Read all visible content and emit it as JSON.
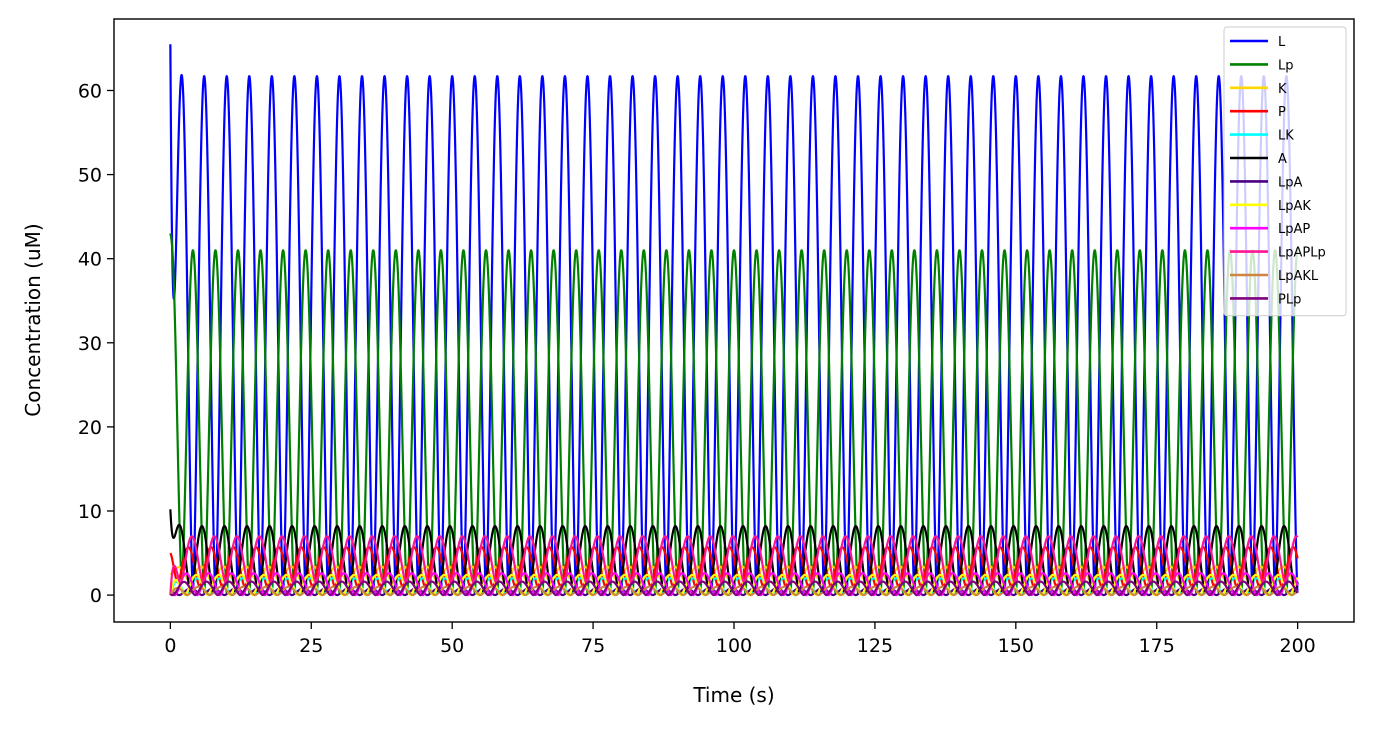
{
  "chart_data": {
    "type": "line",
    "title": "",
    "xlabel": "Time (s)",
    "ylabel": "Concentration (uM)",
    "xlim": [
      -10,
      210
    ],
    "ylim": [
      -3.2,
      68.5
    ],
    "xticks": [
      0,
      25,
      50,
      75,
      100,
      125,
      150,
      175,
      200
    ],
    "yticks": [
      0,
      10,
      20,
      30,
      40,
      50,
      60
    ],
    "grid": false,
    "legend_position": "top-right",
    "period_s": 4.0,
    "series": [
      {
        "name": "L",
        "color": "#0000ff",
        "min": 0.3,
        "max": 61.7,
        "initial": 65.5,
        "phase": 0.0
      },
      {
        "name": "Lp",
        "color": "#008000",
        "min": 0.3,
        "max": 41.0,
        "initial": 43.0,
        "phase": 0.5
      },
      {
        "name": "K",
        "color": "#ffd700",
        "min": 1.6,
        "max": 3.4,
        "initial": 2.6,
        "phase": 0.15
      },
      {
        "name": "P",
        "color": "#ff0000",
        "min": 1.0,
        "max": 5.7,
        "initial": 5.0,
        "phase": 0.7
      },
      {
        "name": "LK",
        "color": "#00ffff",
        "min": 0.0,
        "max": 2.0,
        "initial": 0.0,
        "phase": 0.3
      },
      {
        "name": "A",
        "color": "#000000",
        "min": 0.3,
        "max": 8.2,
        "initial": 10.2,
        "phase": 0.1
      },
      {
        "name": "LpA",
        "color": "#4b0082",
        "min": 0.0,
        "max": 0.8,
        "initial": 0.0,
        "phase": 0.6
      },
      {
        "name": "LpAK",
        "color": "#ffff00",
        "min": 0.0,
        "max": 2.4,
        "initial": 0.0,
        "phase": 0.35
      },
      {
        "name": "LpAP",
        "color": "#ff00ff",
        "min": 0.0,
        "max": 2.6,
        "initial": 0.0,
        "phase": 0.8
      },
      {
        "name": "LpAPLp",
        "color": "#ff1493",
        "min": 1.5,
        "max": 7.0,
        "initial": 0.0,
        "phase": 0.55
      },
      {
        "name": "LpAKL",
        "color": "#cd853f",
        "min": 0.0,
        "max": 1.0,
        "initial": 0.0,
        "phase": 0.25
      },
      {
        "name": "PLp",
        "color": "#800080",
        "min": 0.0,
        "max": 1.6,
        "initial": 0.0,
        "phase": 0.9
      }
    ]
  }
}
